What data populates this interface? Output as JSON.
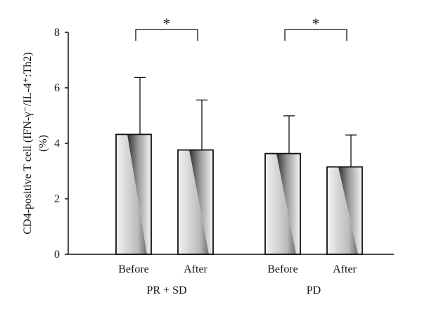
{
  "chart_data": {
    "type": "bar",
    "ylabel_line1": "CD4-positive T cell (IFN-γ⁻/IL-4⁺:Th2)",
    "ylabel_line2": "(%)",
    "ylim": [
      0,
      8
    ],
    "yticks": [
      "0",
      "2",
      "4",
      "6",
      "8"
    ],
    "grid": false,
    "legend": "none",
    "groups": [
      {
        "name": "PR + SD",
        "bars": [
          {
            "category": "Before",
            "value": 4.32,
            "error": 2.05
          },
          {
            "category": "After",
            "value": 3.76,
            "error": 1.8
          }
        ],
        "significance": "*"
      },
      {
        "name": "PD",
        "bars": [
          {
            "category": "Before",
            "value": 3.63,
            "error": 1.36
          },
          {
            "category": "After",
            "value": 3.15,
            "error": 1.15
          }
        ],
        "significance": "*"
      }
    ],
    "colors": {
      "bar_dark": "#3a3a3a",
      "bar_light": "#f4f4f4",
      "axis": "#111111"
    }
  }
}
